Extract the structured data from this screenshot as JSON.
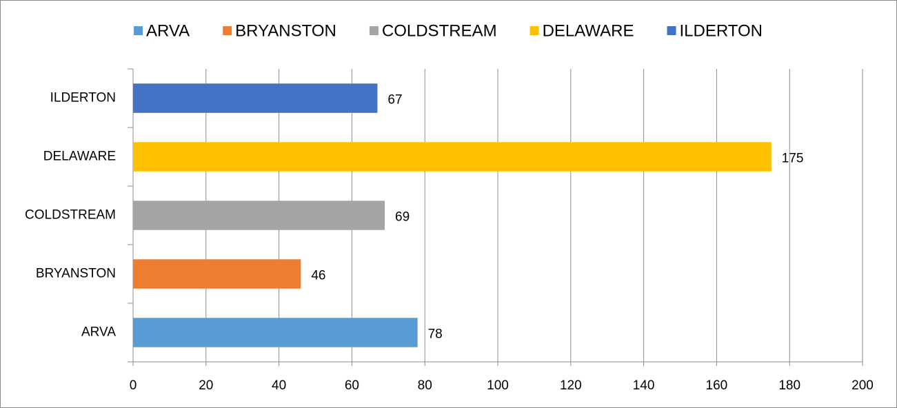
{
  "chart_data": {
    "type": "bar",
    "orientation": "horizontal",
    "categories": [
      "ARVA",
      "BRYANSTON",
      "COLDSTREAM",
      "DELAWARE",
      "ILDERTON"
    ],
    "values": [
      78,
      46,
      69,
      175,
      67
    ],
    "colors": [
      "#5b9bd5",
      "#ed7d31",
      "#a5a5a5",
      "#ffc000",
      "#4472c4"
    ],
    "xlim": [
      0,
      200
    ],
    "xticks": [
      0,
      20,
      40,
      60,
      80,
      100,
      120,
      140,
      160,
      180,
      200
    ],
    "grid": true,
    "legend": "top",
    "value_labels_shown": true
  }
}
